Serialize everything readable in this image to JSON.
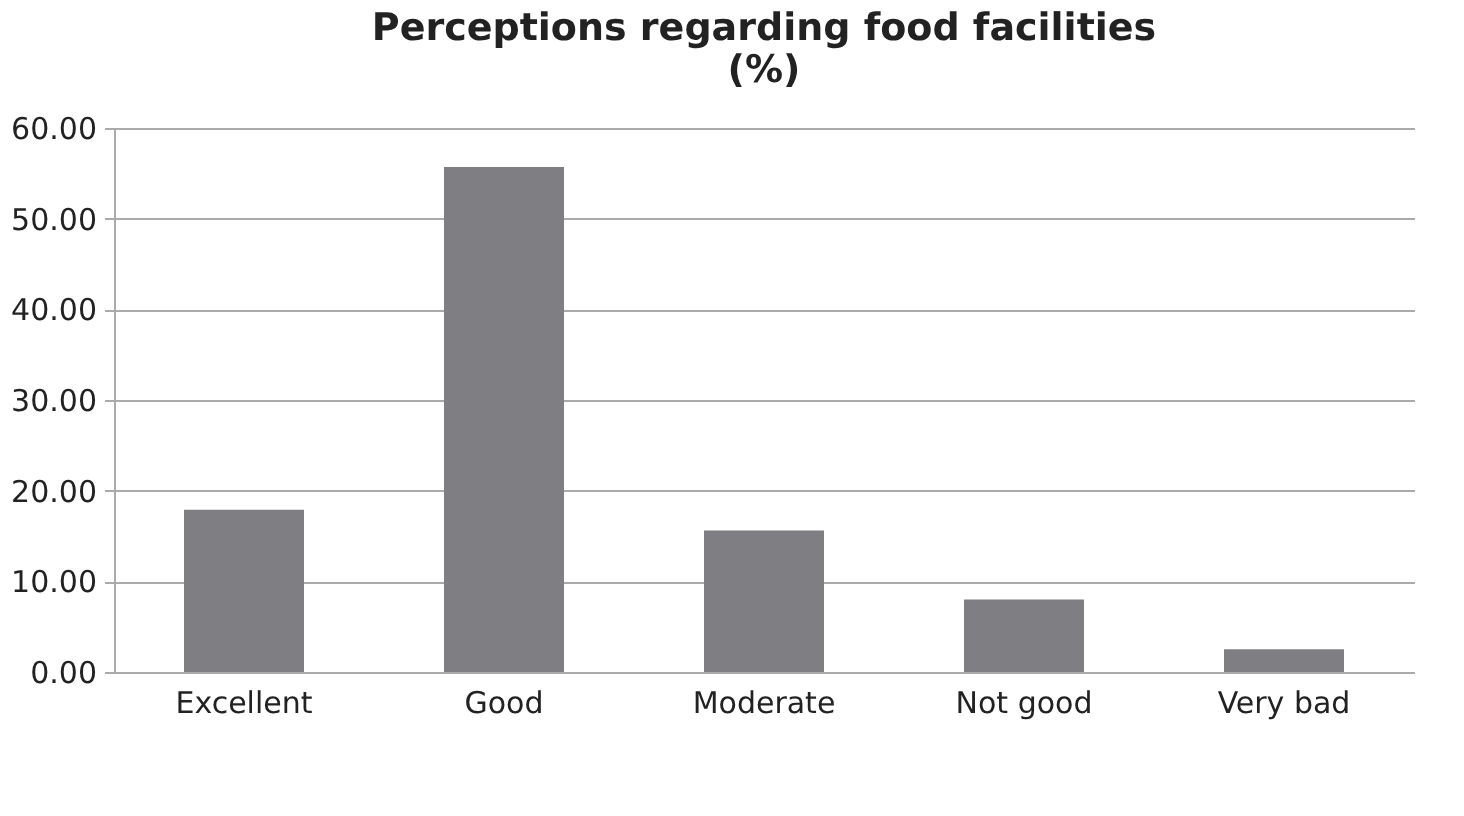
{
  "chart_data": {
    "type": "bar",
    "title": [
      "Perceptions regarding food facilities",
      "(%)"
    ],
    "categories": [
      "Excellent",
      "Good",
      "Moderate",
      "Not good",
      "Very bad"
    ],
    "values": [
      17.9,
      55.7,
      15.6,
      8.0,
      2.5
    ],
    "color": "#7f7f83",
    "ylim": [
      0,
      60
    ],
    "yticks": [
      {
        "value": 0,
        "label": "0.00"
      },
      {
        "value": 10,
        "label": "10.00"
      },
      {
        "value": 20,
        "label": "20.00"
      },
      {
        "value": 30,
        "label": "30.00"
      },
      {
        "value": 40,
        "label": "40.00"
      },
      {
        "value": 50,
        "label": "50.00"
      },
      {
        "value": 60,
        "label": "60.00"
      }
    ],
    "grid": "y"
  }
}
